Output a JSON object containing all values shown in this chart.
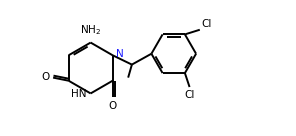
{
  "background": "#ffffff",
  "line_color": "#000000",
  "line_width": 1.4,
  "font_size": 7.5,
  "label_color_N": "#1a1aff",
  "figsize": [
    2.96,
    1.36
  ],
  "dpi": 100,
  "xlim": [
    0.0,
    9.5
  ],
  "ylim": [
    0.0,
    4.3
  ]
}
